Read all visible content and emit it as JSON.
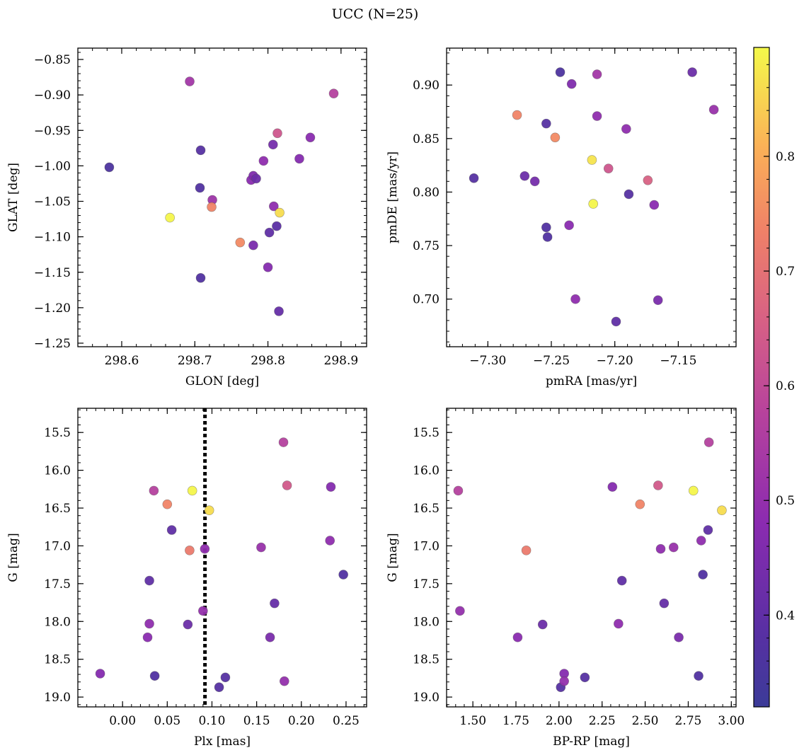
{
  "figure": {
    "title": "UCC (N=25)"
  },
  "colorbar": {
    "colormap": "plasma",
    "range": [
      0.32,
      0.895
    ],
    "ticks": [
      "0.4",
      "0.5",
      "0.6",
      "0.7",
      "0.8"
    ],
    "tick_values": [
      0.4,
      0.5,
      0.6,
      0.7,
      0.8
    ]
  },
  "chart_data": [
    {
      "type": "scatter",
      "id": "glon-glat",
      "xlabel": "GLON [deg]",
      "ylabel": "GLAT [deg]",
      "xlim": [
        298.54,
        298.935
      ],
      "ylim": [
        -1.255,
        -0.834
      ],
      "y_inverted": false,
      "x_ticks": [
        298.6,
        298.7,
        298.8,
        298.9
      ],
      "x_tick_labels": [
        "298.6",
        "298.7",
        "298.8",
        "298.9"
      ],
      "y_ticks": [
        -0.85,
        -0.9,
        -0.95,
        -1.0,
        -1.05,
        -1.1,
        -1.15,
        -1.2,
        -1.25
      ],
      "y_tick_labels": [
        "−0.85",
        "−0.90",
        "−0.95",
        "−1.00",
        "−1.05",
        "−1.10",
        "−1.15",
        "−1.20",
        "−1.25"
      ],
      "points": [
        {
          "x": 298.583,
          "y": -1.002,
          "c": 0.36
        },
        {
          "x": 298.693,
          "y": -0.881,
          "c": 0.53
        },
        {
          "x": 298.708,
          "y": -0.978,
          "c": 0.38
        },
        {
          "x": 298.707,
          "y": -1.031,
          "c": 0.37
        },
        {
          "x": 298.708,
          "y": -1.158,
          "c": 0.37
        },
        {
          "x": 298.666,
          "y": -1.073,
          "c": 0.89
        },
        {
          "x": 298.724,
          "y": -1.048,
          "c": 0.52
        },
        {
          "x": 298.723,
          "y": -1.058,
          "c": 0.74
        },
        {
          "x": 298.762,
          "y": -1.108,
          "c": 0.75
        },
        {
          "x": 298.777,
          "y": -1.02,
          "c": 0.48
        },
        {
          "x": 298.78,
          "y": -1.014,
          "c": 0.46
        },
        {
          "x": 298.784,
          "y": -1.018,
          "c": 0.42
        },
        {
          "x": 298.78,
          "y": -1.112,
          "c": 0.45
        },
        {
          "x": 298.794,
          "y": -0.993,
          "c": 0.49
        },
        {
          "x": 298.8,
          "y": -1.143,
          "c": 0.47
        },
        {
          "x": 298.802,
          "y": -1.094,
          "c": 0.4
        },
        {
          "x": 298.807,
          "y": -0.97,
          "c": 0.44
        },
        {
          "x": 298.808,
          "y": -1.057,
          "c": 0.49
        },
        {
          "x": 298.813,
          "y": -0.954,
          "c": 0.63
        },
        {
          "x": 298.812,
          "y": -1.085,
          "c": 0.39
        },
        {
          "x": 298.815,
          "y": -1.205,
          "c": 0.41
        },
        {
          "x": 298.816,
          "y": -1.066,
          "c": 0.86
        },
        {
          "x": 298.843,
          "y": -0.99,
          "c": 0.47
        },
        {
          "x": 298.858,
          "y": -0.96,
          "c": 0.48
        },
        {
          "x": 298.89,
          "y": -0.898,
          "c": 0.57
        }
      ]
    },
    {
      "type": "scatter",
      "id": "pmra-pmde",
      "xlabel": "pmRA [mas/yr]",
      "ylabel": "pmDE [mas/yr]",
      "xlim": [
        -7.3325,
        -7.1045
      ],
      "ylim": [
        0.6555,
        0.9345
      ],
      "y_inverted": false,
      "x_ticks": [
        -7.3,
        -7.25,
        -7.2,
        -7.15
      ],
      "x_tick_labels": [
        "−7.30",
        "−7.25",
        "−7.20",
        "−7.15"
      ],
      "y_ticks": [
        0.7,
        0.75,
        0.8,
        0.85,
        0.9
      ],
      "y_tick_labels": [
        "0.70",
        "0.75",
        "0.80",
        "0.85",
        "0.90"
      ],
      "points": [
        {
          "x": -7.311,
          "y": 0.813,
          "c": 0.38
        },
        {
          "x": -7.277,
          "y": 0.872,
          "c": 0.74
        },
        {
          "x": -7.271,
          "y": 0.815,
          "c": 0.42
        },
        {
          "x": -7.263,
          "y": 0.81,
          "c": 0.44
        },
        {
          "x": -7.254,
          "y": 0.864,
          "c": 0.38
        },
        {
          "x": -7.254,
          "y": 0.767,
          "c": 0.37
        },
        {
          "x": -7.253,
          "y": 0.758,
          "c": 0.37
        },
        {
          "x": -7.247,
          "y": 0.851,
          "c": 0.75
        },
        {
          "x": -7.243,
          "y": 0.912,
          "c": 0.36
        },
        {
          "x": -7.236,
          "y": 0.769,
          "c": 0.48
        },
        {
          "x": -7.234,
          "y": 0.901,
          "c": 0.46
        },
        {
          "x": -7.231,
          "y": 0.7,
          "c": 0.49
        },
        {
          "x": -7.218,
          "y": 0.83,
          "c": 0.87
        },
        {
          "x": -7.217,
          "y": 0.789,
          "c": 0.89
        },
        {
          "x": -7.214,
          "y": 0.91,
          "c": 0.53
        },
        {
          "x": -7.214,
          "y": 0.871,
          "c": 0.49
        },
        {
          "x": -7.205,
          "y": 0.822,
          "c": 0.63
        },
        {
          "x": -7.199,
          "y": 0.679,
          "c": 0.4
        },
        {
          "x": -7.191,
          "y": 0.859,
          "c": 0.49
        },
        {
          "x": -7.189,
          "y": 0.798,
          "c": 0.38
        },
        {
          "x": -7.174,
          "y": 0.811,
          "c": 0.66
        },
        {
          "x": -7.169,
          "y": 0.788,
          "c": 0.48
        },
        {
          "x": -7.166,
          "y": 0.699,
          "c": 0.45
        },
        {
          "x": -7.139,
          "y": 0.912,
          "c": 0.42
        },
        {
          "x": -7.122,
          "y": 0.877,
          "c": 0.51
        }
      ]
    },
    {
      "type": "scatter",
      "id": "plx-g",
      "xlabel": "Plx [mas]",
      "ylabel": "G [mag]",
      "xlim": [
        -0.05,
        0.273
      ],
      "ylim": [
        15.18,
        19.13
      ],
      "y_inverted": true,
      "vline": {
        "x": 0.0922,
        "style": "dotted"
      },
      "x_ticks": [
        0.0,
        0.05,
        0.1,
        0.15,
        0.2,
        0.25
      ],
      "x_tick_labels": [
        "0.00",
        "0.05",
        "0.10",
        "0.15",
        "0.20",
        "0.25"
      ],
      "y_ticks": [
        15.5,
        16.0,
        16.5,
        17.0,
        17.5,
        18.0,
        18.5,
        19.0
      ],
      "y_tick_labels": [
        "15.5",
        "16.0",
        "16.5",
        "17.0",
        "17.5",
        "18.0",
        "18.5",
        "19.0"
      ],
      "points": [
        {
          "x": -0.025,
          "y": 18.69,
          "c": 0.47
        },
        {
          "x": 0.028,
          "y": 18.21,
          "c": 0.48
        },
        {
          "x": 0.03,
          "y": 17.46,
          "c": 0.4
        },
        {
          "x": 0.03,
          "y": 18.03,
          "c": 0.49
        },
        {
          "x": 0.035,
          "y": 16.27,
          "c": 0.57
        },
        {
          "x": 0.036,
          "y": 18.72,
          "c": 0.37
        },
        {
          "x": 0.05,
          "y": 16.45,
          "c": 0.74
        },
        {
          "x": 0.055,
          "y": 16.79,
          "c": 0.4
        },
        {
          "x": 0.073,
          "y": 18.04,
          "c": 0.42
        },
        {
          "x": 0.075,
          "y": 17.06,
          "c": 0.72
        },
        {
          "x": 0.078,
          "y": 16.27,
          "c": 0.89
        },
        {
          "x": 0.09,
          "y": 17.86,
          "c": 0.5
        },
        {
          "x": 0.092,
          "y": 17.04,
          "c": 0.49
        },
        {
          "x": 0.097,
          "y": 16.53,
          "c": 0.86
        },
        {
          "x": 0.108,
          "y": 18.87,
          "c": 0.38
        },
        {
          "x": 0.115,
          "y": 18.74,
          "c": 0.38
        },
        {
          "x": 0.155,
          "y": 17.02,
          "c": 0.51
        },
        {
          "x": 0.165,
          "y": 18.21,
          "c": 0.45
        },
        {
          "x": 0.17,
          "y": 17.76,
          "c": 0.41
        },
        {
          "x": 0.18,
          "y": 15.63,
          "c": 0.57
        },
        {
          "x": 0.181,
          "y": 18.79,
          "c": 0.5
        },
        {
          "x": 0.184,
          "y": 16.2,
          "c": 0.64
        },
        {
          "x": 0.232,
          "y": 16.93,
          "c": 0.49
        },
        {
          "x": 0.233,
          "y": 16.22,
          "c": 0.47
        },
        {
          "x": 0.247,
          "y": 17.38,
          "c": 0.37
        }
      ]
    },
    {
      "type": "scatter",
      "id": "bprp-g",
      "xlabel": "BP-RP [mag]",
      "ylabel": "G [mag]",
      "xlim": [
        1.3475,
        3.0275
      ],
      "ylim": [
        15.18,
        19.13
      ],
      "y_inverted": true,
      "x_ticks": [
        1.5,
        1.75,
        2.0,
        2.25,
        2.5,
        2.75,
        3.0
      ],
      "x_tick_labels": [
        "1.50",
        "1.75",
        "2.00",
        "2.25",
        "2.50",
        "2.75",
        "3.00"
      ],
      "y_ticks": [
        15.5,
        16.0,
        16.5,
        17.0,
        17.5,
        18.0,
        18.5,
        19.0
      ],
      "y_tick_labels": [
        "15.5",
        "16.0",
        "16.5",
        "17.0",
        "17.5",
        "18.0",
        "18.5",
        "19.0"
      ],
      "points": [
        {
          "x": 1.415,
          "y": 16.27,
          "c": 0.57
        },
        {
          "x": 1.425,
          "y": 17.86,
          "c": 0.5
        },
        {
          "x": 1.76,
          "y": 18.21,
          "c": 0.48
        },
        {
          "x": 1.81,
          "y": 17.06,
          "c": 0.72
        },
        {
          "x": 1.905,
          "y": 18.04,
          "c": 0.42
        },
        {
          "x": 2.01,
          "y": 18.87,
          "c": 0.38
        },
        {
          "x": 2.03,
          "y": 18.69,
          "c": 0.47
        },
        {
          "x": 2.03,
          "y": 18.79,
          "c": 0.5
        },
        {
          "x": 2.15,
          "y": 18.74,
          "c": 0.38
        },
        {
          "x": 2.31,
          "y": 16.22,
          "c": 0.47
        },
        {
          "x": 2.345,
          "y": 18.03,
          "c": 0.49
        },
        {
          "x": 2.365,
          "y": 17.46,
          "c": 0.4
        },
        {
          "x": 2.47,
          "y": 16.45,
          "c": 0.74
        },
        {
          "x": 2.575,
          "y": 16.2,
          "c": 0.64
        },
        {
          "x": 2.59,
          "y": 17.04,
          "c": 0.49
        },
        {
          "x": 2.61,
          "y": 17.76,
          "c": 0.41
        },
        {
          "x": 2.665,
          "y": 17.02,
          "c": 0.51
        },
        {
          "x": 2.695,
          "y": 18.21,
          "c": 0.45
        },
        {
          "x": 2.78,
          "y": 16.27,
          "c": 0.89
        },
        {
          "x": 2.81,
          "y": 18.72,
          "c": 0.37
        },
        {
          "x": 2.825,
          "y": 16.93,
          "c": 0.49
        },
        {
          "x": 2.835,
          "y": 17.38,
          "c": 0.37
        },
        {
          "x": 2.865,
          "y": 16.79,
          "c": 0.4
        },
        {
          "x": 2.87,
          "y": 15.63,
          "c": 0.57
        },
        {
          "x": 2.945,
          "y": 16.53,
          "c": 0.86
        }
      ]
    }
  ]
}
